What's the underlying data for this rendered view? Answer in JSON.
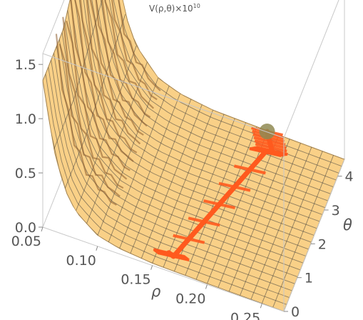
{
  "chart_data": {
    "type": "surface3d",
    "title": "V(ρ,θ)×10",
    "title_exponent": "10",
    "xlabel": "ρ",
    "ylabel": "θ",
    "zlabel": "",
    "x_ticks": [
      "0.05",
      "0.10",
      "0.15",
      "0.20",
      "0.25"
    ],
    "x_tick_values": [
      0.05,
      0.1,
      0.15,
      0.2,
      0.25
    ],
    "y_ticks": [
      "0",
      "1",
      "2",
      "3",
      "4"
    ],
    "y_tick_values": [
      0,
      1,
      2,
      3,
      4
    ],
    "z_ticks": [
      "0.0",
      "0.5",
      "1.0",
      "1.5"
    ],
    "z_tick_values": [
      0.0,
      0.5,
      1.0,
      1.5
    ],
    "xlim": [
      0.05,
      0.27
    ],
    "ylim": [
      0,
      4.5
    ],
    "zlim": [
      0,
      1.6
    ],
    "surface_profile": {
      "rho": [
        0.05,
        0.06,
        0.07,
        0.08,
        0.1,
        0.12,
        0.15,
        0.2,
        0.27
      ],
      "V": [
        1.35,
        0.75,
        0.42,
        0.25,
        0.1,
        0.05,
        0.02,
        0.01,
        0.0
      ]
    },
    "path": {
      "rho": [
        0.16,
        0.165,
        0.205,
        0.21,
        0.2
      ],
      "theta": [
        0.4,
        0.35,
        3.9,
        4.0,
        4.45
      ]
    },
    "end_marker": {
      "rho": 0.2,
      "theta": 4.45
    },
    "colors": {
      "surface": "#f8c872",
      "surface_edge": "#c8a060",
      "ridge": "#8a5a2a",
      "path": "#ff5a1e",
      "marker": "#8f8a52",
      "box": "#c8c8c8"
    }
  }
}
